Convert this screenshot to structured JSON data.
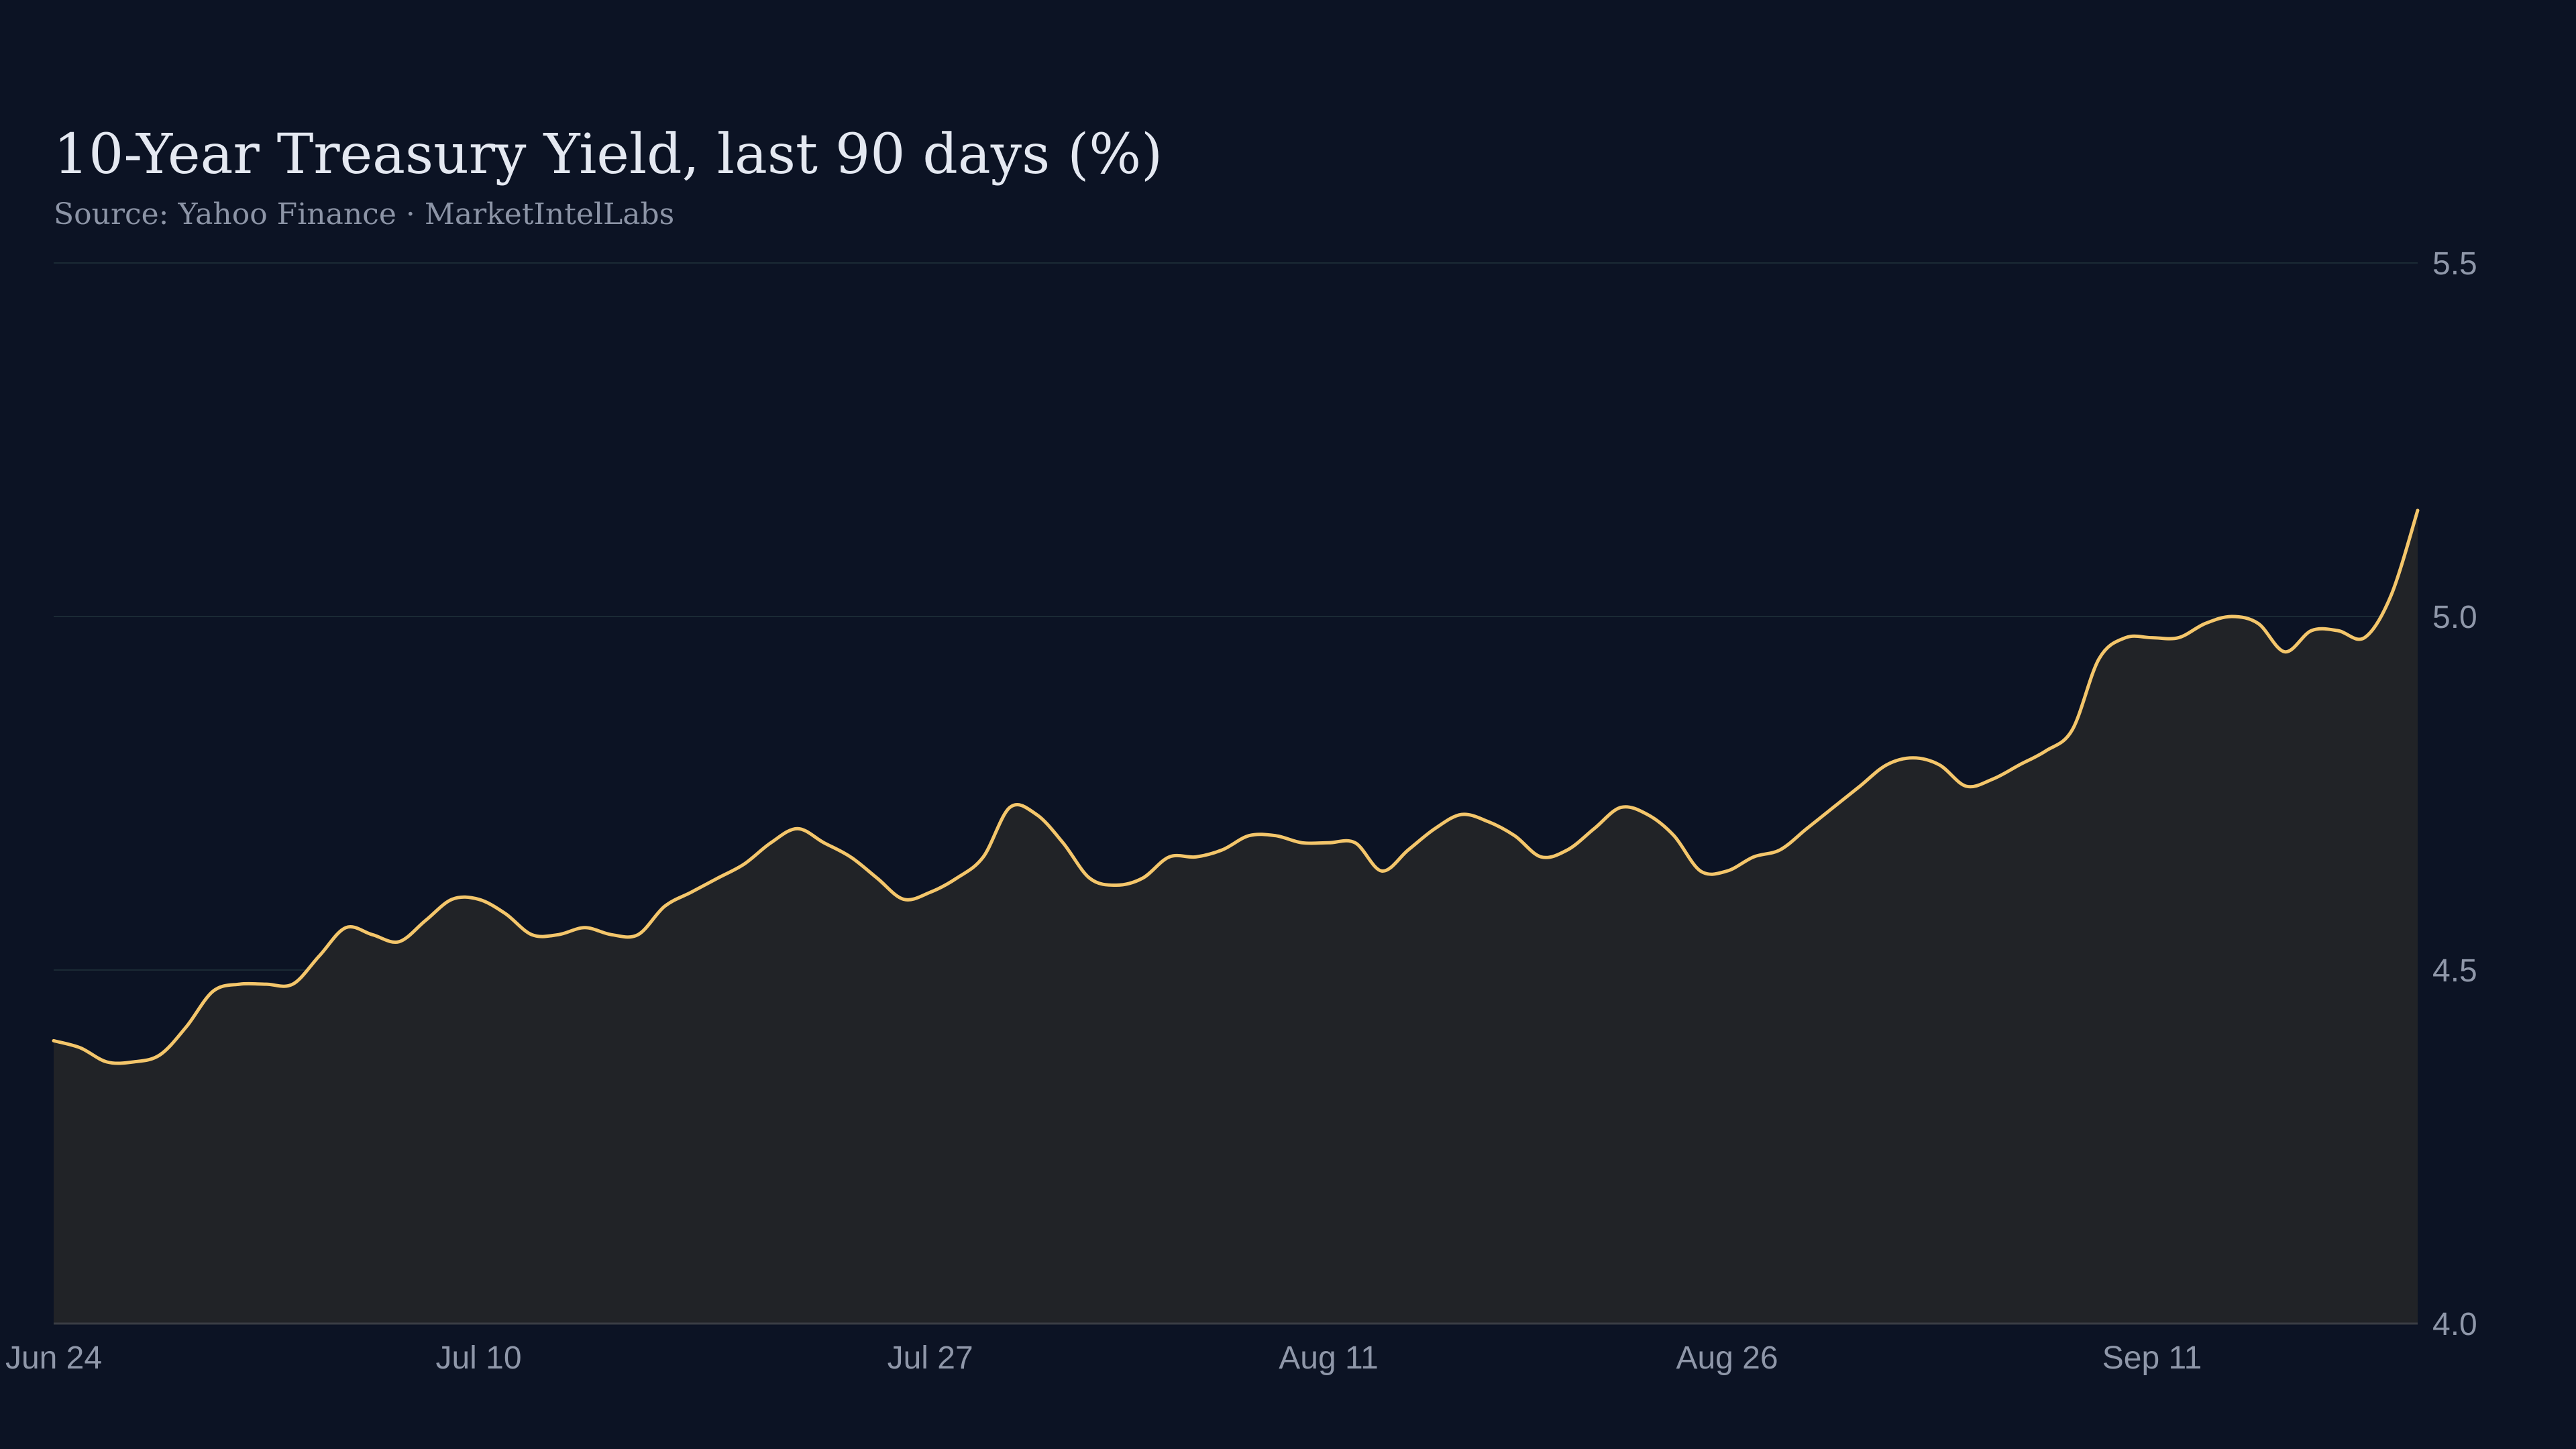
{
  "chart_data": {
    "type": "area",
    "title": "10-Year Treasury Yield, last 90 days (%)",
    "subtitle": "Source: Yahoo Finance · MarketIntelLabs",
    "xlabel": "",
    "ylabel": "",
    "ylim": [
      4.0,
      5.5
    ],
    "yticks": [
      "4.0",
      "4.5",
      "5.0",
      "5.5"
    ],
    "xticks": [
      {
        "label": "Jun 24",
        "x": "2024-06-24"
      },
      {
        "label": "Jul 10",
        "x": "2024-07-10"
      },
      {
        "label": "Jul 27",
        "x": "2024-07-27"
      },
      {
        "label": "Aug 11",
        "x": "2024-08-11"
      },
      {
        "label": "Aug 26",
        "x": "2024-08-26"
      },
      {
        "label": "Sep 11",
        "x": "2024-09-11"
      }
    ],
    "grid": true,
    "y_axis_position": "right",
    "line_color": "#f4c66b",
    "fill_color": "#212327",
    "background": "#0c1324",
    "series": [
      {
        "x": [
          "2024-06-24",
          "2024-06-25",
          "2024-06-26",
          "2024-06-27",
          "2024-06-28",
          "2024-06-29",
          "2024-06-30",
          "2024-07-01",
          "2024-07-02",
          "2024-07-03",
          "2024-07-04",
          "2024-07-05",
          "2024-07-06",
          "2024-07-07",
          "2024-07-08",
          "2024-07-09",
          "2024-07-10",
          "2024-07-11",
          "2024-07-12",
          "2024-07-13",
          "2024-07-14",
          "2024-07-15",
          "2024-07-16",
          "2024-07-17",
          "2024-07-18",
          "2024-07-19",
          "2024-07-20",
          "2024-07-21",
          "2024-07-22",
          "2024-07-23",
          "2024-07-24",
          "2024-07-25",
          "2024-07-26",
          "2024-07-27",
          "2024-07-28",
          "2024-07-29",
          "2024-07-30",
          "2024-07-31",
          "2024-08-01",
          "2024-08-02",
          "2024-08-03",
          "2024-08-04",
          "2024-08-05",
          "2024-08-06",
          "2024-08-07",
          "2024-08-08",
          "2024-08-09",
          "2024-08-10",
          "2024-08-11",
          "2024-08-12",
          "2024-08-13",
          "2024-08-14",
          "2024-08-15",
          "2024-08-16",
          "2024-08-17",
          "2024-08-18",
          "2024-08-19",
          "2024-08-20",
          "2024-08-21",
          "2024-08-22",
          "2024-08-23",
          "2024-08-24",
          "2024-08-25",
          "2024-08-26",
          "2024-08-27",
          "2024-08-28",
          "2024-08-29",
          "2024-08-30",
          "2024-08-31",
          "2024-09-01",
          "2024-09-02",
          "2024-09-03",
          "2024-09-04",
          "2024-09-05",
          "2024-09-06",
          "2024-09-07",
          "2024-09-08",
          "2024-09-09",
          "2024-09-10",
          "2024-09-11",
          "2024-09-12",
          "2024-09-13",
          "2024-09-14",
          "2024-09-15",
          "2024-09-16",
          "2024-09-17",
          "2024-09-18",
          "2024-09-19",
          "2024-09-20",
          "2024-09-21"
        ],
        "values": [
          4.4,
          4.39,
          4.37,
          4.37,
          4.38,
          4.42,
          4.47,
          4.48,
          4.48,
          4.48,
          4.52,
          4.56,
          4.55,
          4.54,
          4.57,
          4.6,
          4.6,
          4.58,
          4.55,
          4.55,
          4.56,
          4.55,
          4.55,
          4.59,
          4.61,
          4.63,
          4.65,
          4.68,
          4.7,
          4.68,
          4.66,
          4.63,
          4.6,
          4.61,
          4.63,
          4.66,
          4.73,
          4.72,
          4.68,
          4.63,
          4.62,
          4.63,
          4.66,
          4.66,
          4.67,
          4.69,
          4.69,
          4.68,
          4.68,
          4.68,
          4.64,
          4.67,
          4.7,
          4.72,
          4.71,
          4.69,
          4.66,
          4.67,
          4.7,
          4.73,
          4.72,
          4.69,
          4.64,
          4.64,
          4.66,
          4.67,
          4.7,
          4.73,
          4.76,
          4.79,
          4.8,
          4.79,
          4.76,
          4.77,
          4.79,
          4.81,
          4.84,
          4.94,
          4.97,
          4.97,
          4.97,
          4.99,
          5.0,
          4.99,
          4.95,
          4.98,
          4.98,
          4.97,
          5.03,
          5.15
        ]
      }
    ]
  }
}
